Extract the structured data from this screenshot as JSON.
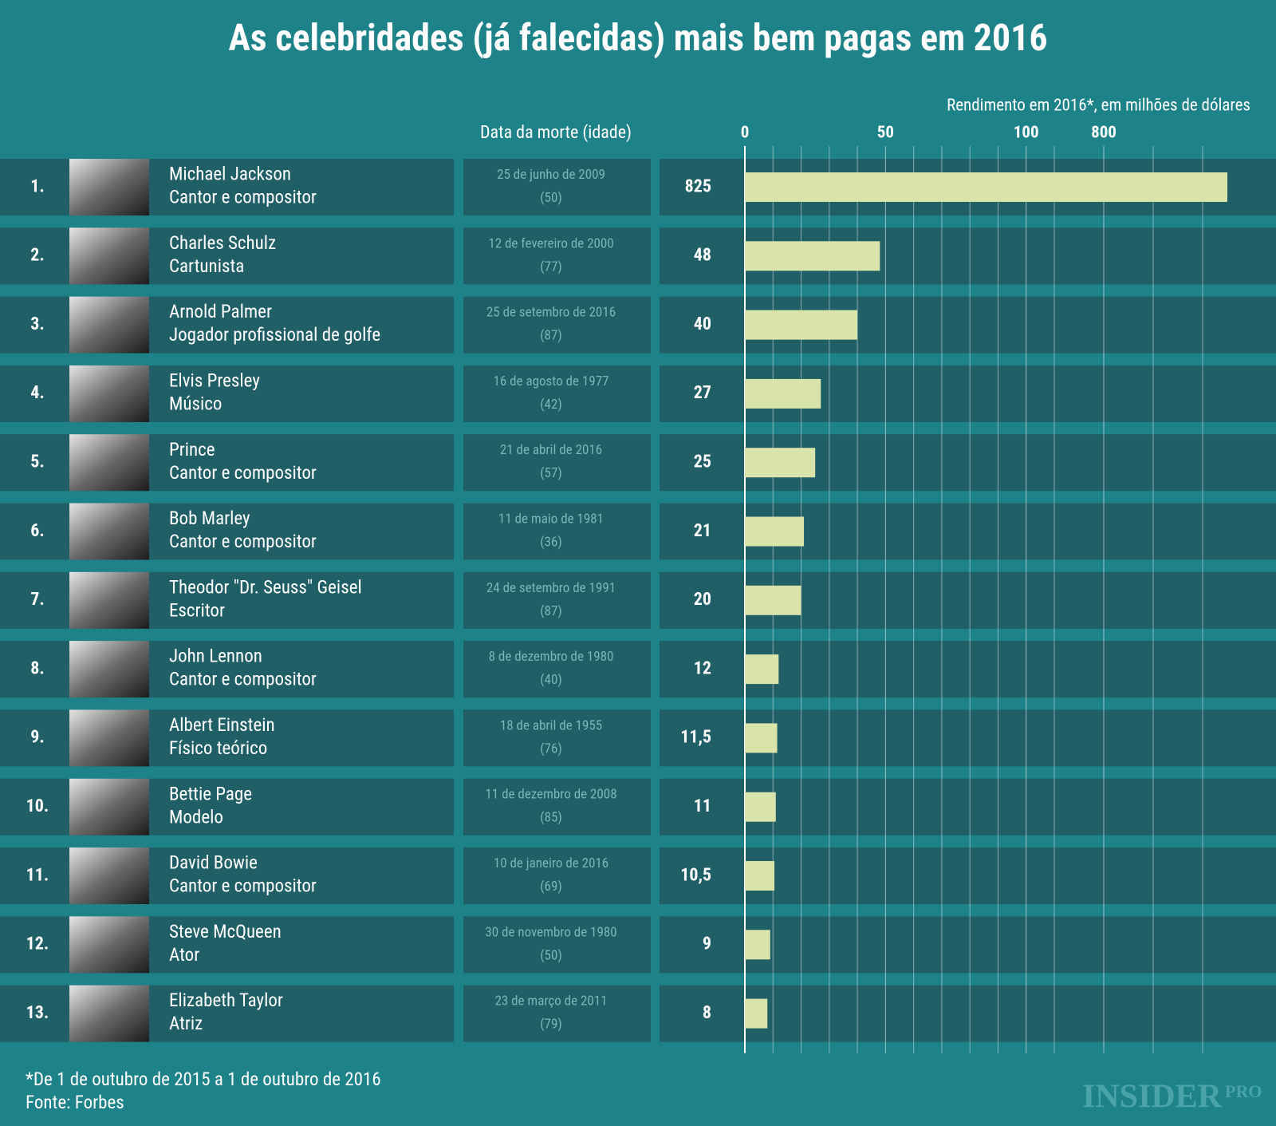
{
  "chart_data": {
    "type": "bar",
    "title": "As celebridades (já falecidas) mais bem pagas em 2016",
    "x_axis_title": "Rendimento em 2016*, em milhões de dólares",
    "date_header": "Data da morte (idade)",
    "ranks": [
      "1.",
      "2.",
      "3.",
      "4.",
      "5.",
      "6.",
      "7.",
      "8.",
      "9.",
      "10.",
      "11.",
      "12.",
      "13."
    ],
    "categories": [
      "Michael Jackson",
      "Charles Schulz",
      "Arnold Palmer",
      "Elvis Presley",
      "Prince",
      "Bob Marley",
      "Theodor \"Dr. Seuss\" Geisel",
      "John Lennon",
      "Albert Einstein",
      "Bettie Page",
      "David Bowie",
      "Steve McQueen",
      "Elizabeth Taylor"
    ],
    "roles": [
      "Cantor e compositor",
      "Cartunista",
      "Jogador profissional de golfe",
      "Músico",
      "Cantor e compositor",
      "Cantor e compositor",
      "Escritor",
      "Cantor e compositor",
      "Físico teórico",
      "Modelo",
      "Cantor e compositor",
      "Ator",
      "Atriz"
    ],
    "death_dates": [
      "25 de junho de 2009",
      "12 de fevereiro de 2000",
      "25 de setembro de 2016",
      "16 de agosto de 1977",
      "21 de abril de 2016",
      "11 de maio de 1981",
      "24 de setembro de 1991",
      "8 de dezembro de 1980",
      "18 de abril de 1955",
      "11 de dezembro de 2008",
      "10 de janeiro de 2016",
      "30 de novembro de 1980",
      "23 de março de 2011"
    ],
    "ages": [
      "(50)",
      "(77)",
      "(87)",
      "(42)",
      "(57)",
      "(36)",
      "(87)",
      "(40)",
      "(76)",
      "(85)",
      "(69)",
      "(50)",
      "(79)"
    ],
    "values": [
      825,
      48,
      40,
      27,
      25,
      21,
      20,
      12,
      11.5,
      11,
      10.5,
      9,
      8
    ],
    "value_labels": [
      "825",
      "48",
      "40",
      "27",
      "25",
      "21",
      "20",
      "12",
      "11,5",
      "11",
      "10,5",
      "9",
      "8"
    ],
    "color": "#d8e4a9",
    "xlim": [
      0,
      830
    ],
    "xbreak": [
      110,
      790
    ],
    "xticks": [
      0,
      50,
      100,
      800
    ],
    "xgrid": [
      10,
      20,
      30,
      40,
      60,
      70,
      80,
      90,
      110,
      810,
      820
    ],
    "footnote": "*De 1 de outubro de 2015 a 1 de outubro de 2016",
    "source": "Fonte: Forbes",
    "logo": "INSIDER",
    "logo_sub": "PRO"
  }
}
